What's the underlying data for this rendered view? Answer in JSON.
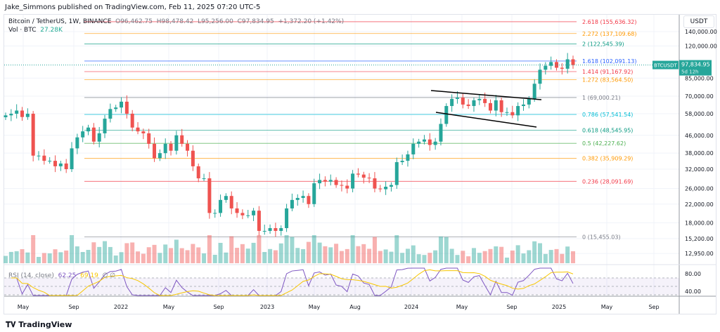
{
  "header": {
    "published": "Jake_Simmons published on TradingView.com, Feb 11, 2025 07:20 UTC-5"
  },
  "legend": {
    "symbol": "Bitcoin / TetherUS, 1W, BINANCE",
    "open": "O96,462.75",
    "high": "H98,478.42",
    "low": "L95,256.00",
    "close": "C97,834.95",
    "change": "+1,372.20 (+1.42%)",
    "vol_label": "Vol · BTC",
    "vol_value": "27.28K"
  },
  "rsi": {
    "label": "RSI (14, close)",
    "value": "62.25",
    "ma": "69.19",
    "icons": "∅ ∅",
    "axis": [
      "80.00",
      "40.00"
    ]
  },
  "currency": "USDT",
  "last_price": {
    "symbol": "BTCUSDT",
    "price": "97,834.95",
    "countdown": "5d 12h"
  },
  "logo": "TradingView",
  "colors": {
    "up": "#26a69a",
    "down": "#ef5350",
    "rsi": "#7e57c2",
    "rsi_ma": "#f7c600"
  },
  "chart_data": {
    "type": "candlestick",
    "title": "Bitcoin / TetherUS, 1W, BINANCE",
    "scale": "log",
    "price_ticks": [
      140000,
      120000,
      85000,
      70000,
      58000,
      46000,
      38000,
      32000,
      26000,
      22000,
      18000,
      15200,
      12950
    ],
    "price_tick_labels": [
      "140,000.00",
      "120,000.00",
      "85,000.00",
      "70,000.00",
      "58,000.00",
      "46,000.00",
      "38,000.00",
      "32,000.00",
      "26,000.00",
      "22,000.00",
      "18,000.00",
      "15,200.00",
      "12,950.00"
    ],
    "time_labels": [
      "May",
      "Sep",
      "2022",
      "May",
      "Sep",
      "2023",
      "May",
      "Aug",
      "2024",
      "May",
      "Sep",
      "2025",
      "May",
      "Sep"
    ],
    "fib_levels": [
      {
        "ratio": "2.618",
        "price": 155636.32,
        "label": "2.618 (155,636.32)",
        "color": "#f23645"
      },
      {
        "ratio": "2.272",
        "price": 137109.68,
        "label": "2.272 (137,109.68)",
        "color": "#ff9800"
      },
      {
        "ratio": "2",
        "price": 122545.39,
        "label": "2 (122,545.39)",
        "color": "#089981"
      },
      {
        "ratio": "1.618",
        "price": 102091.13,
        "label": "1.618 (102,091.13)",
        "color": "#2962ff"
      },
      {
        "ratio": "1.414",
        "price": 91167.92,
        "label": "1.414 (91,167.92)",
        "color": "#f23645"
      },
      {
        "ratio": "1.272",
        "price": 83564.5,
        "label": "1.272 (83,564.50)",
        "color": "#ff9800"
      },
      {
        "ratio": "1",
        "price": 69000.21,
        "label": "1 (69,000.21)",
        "color": "#787b86"
      },
      {
        "ratio": "0.786",
        "price": 57541.54,
        "label": "0.786 (57,541.54)",
        "color": "#00bcd4"
      },
      {
        "ratio": "0.618",
        "price": 48545.95,
        "label": "0.618 (48,545.95)",
        "color": "#089981"
      },
      {
        "ratio": "0.5",
        "price": 42227.62,
        "label": "0.5 (42,227.62)",
        "color": "#4caf50"
      },
      {
        "ratio": "0.382",
        "price": 35909.29,
        "label": "0.382 (35,909.29)",
        "color": "#ff9800"
      },
      {
        "ratio": "0.236",
        "price": 28091.69,
        "label": "0.236 (28,091.69)",
        "color": "#f23645"
      },
      {
        "ratio": "0",
        "price": 15455.03,
        "label": "0 (15,455.03)",
        "color": "#787b86"
      }
    ],
    "closes_biweekly": [
      57000,
      58000,
      60000,
      56000,
      58000,
      37000,
      37000,
      35000,
      35000,
      33000,
      34000,
      32000,
      40000,
      45000,
      48000,
      50000,
      43000,
      47000,
      55000,
      61000,
      62000,
      66000,
      58000,
      50000,
      48000,
      47000,
      42000,
      36000,
      38000,
      42000,
      39000,
      46000,
      42000,
      39000,
      33000,
      29000,
      29000,
      20000,
      20000,
      23000,
      24000,
      21000,
      20000,
      19500,
      19500,
      20500,
      16500,
      16500,
      17000,
      16500,
      17000,
      21000,
      23000,
      23500,
      24000,
      22000,
      27500,
      28500,
      28000,
      28500,
      27000,
      26800,
      26000,
      30500,
      30200,
      29200,
      29000,
      26000,
      25800,
      26500,
      27000,
      34500,
      35000,
      37500,
      42000,
      43000,
      44000,
      41500,
      43000,
      52000,
      63000,
      68000,
      69000,
      64000,
      63000,
      67000,
      68000,
      65000,
      60000,
      67000,
      59000,
      59000,
      57000,
      63000,
      64000,
      68000,
      80000,
      93000,
      97000,
      101000,
      95000,
      94000,
      104000,
      97834.95
    ]
  }
}
